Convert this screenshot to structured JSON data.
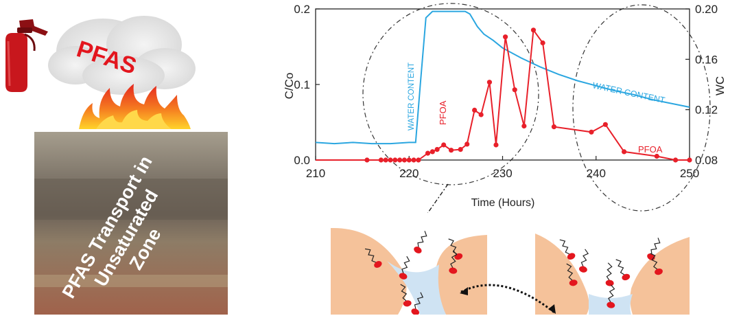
{
  "left_panel": {
    "cloud_label": "PFAS",
    "soil_caption_lines": [
      "PFAS Transport in",
      "Unsaturated",
      "Zone"
    ]
  },
  "chart_data": {
    "type": "line",
    "xlabel": "Time (Hours)",
    "ylabel": "C/Co",
    "y2label": "WC",
    "xlim": [
      210,
      250
    ],
    "ylim": [
      0,
      0.2
    ],
    "y2lim": [
      0.08,
      0.2
    ],
    "x_ticks": [
      "210",
      "220",
      "230",
      "240",
      "250"
    ],
    "y_ticks": [
      "0.0",
      "0.1",
      "0.2"
    ],
    "y2_ticks": [
      "0.08",
      "0.12",
      "0.16",
      "0.20"
    ],
    "grid": false,
    "annotations": [
      "WATER CONTENT",
      "PFOA",
      "WATER CONTENT",
      "PFOA"
    ],
    "series": [
      {
        "name": "WATER CONTENT",
        "axis": "right",
        "color": "#2aa6e0",
        "x": [
          210,
          212,
          214,
          216,
          218,
          220,
          220.7,
          221.2,
          221.8,
          222.5,
          224,
          226,
          226.5,
          227.3,
          228,
          229,
          230,
          232,
          234,
          236,
          238,
          240,
          242,
          244,
          246,
          248,
          250
        ],
        "y": [
          0.094,
          0.093,
          0.094,
          0.093,
          0.093,
          0.094,
          0.094,
          0.14,
          0.193,
          0.198,
          0.198,
          0.198,
          0.196,
          0.186,
          0.18,
          0.175,
          0.169,
          0.161,
          0.154,
          0.148,
          0.143,
          0.139,
          0.135,
          0.132,
          0.128,
          0.125,
          0.122
        ]
      },
      {
        "name": "PFOA",
        "axis": "left",
        "color": "#e8202a",
        "x": [
          210,
          215.5,
          217,
          217.5,
          218,
          218.5,
          219,
          219.5,
          220,
          220.5,
          221,
          222,
          222.5,
          223,
          223.7,
          224.5,
          225.5,
          226.2,
          227,
          227.7,
          228.6,
          229.3,
          230.3,
          231.3,
          232.3,
          233.3,
          234.3,
          235.5,
          239.5,
          241,
          243,
          246.5,
          248.5,
          250
        ],
        "y": [
          0.0,
          0.0,
          0.0,
          0.0,
          0.0,
          0.0,
          0.0,
          0.0,
          0.0,
          0.0,
          0.0,
          0.009,
          0.011,
          0.014,
          0.02,
          0.013,
          0.014,
          0.021,
          0.066,
          0.06,
          0.103,
          0.02,
          0.163,
          0.093,
          0.045,
          0.172,
          0.155,
          0.044,
          0.037,
          0.047,
          0.011,
          0.005,
          0.0,
          0.0
        ]
      }
    ]
  },
  "pore_panel": {
    "description_free": true
  }
}
